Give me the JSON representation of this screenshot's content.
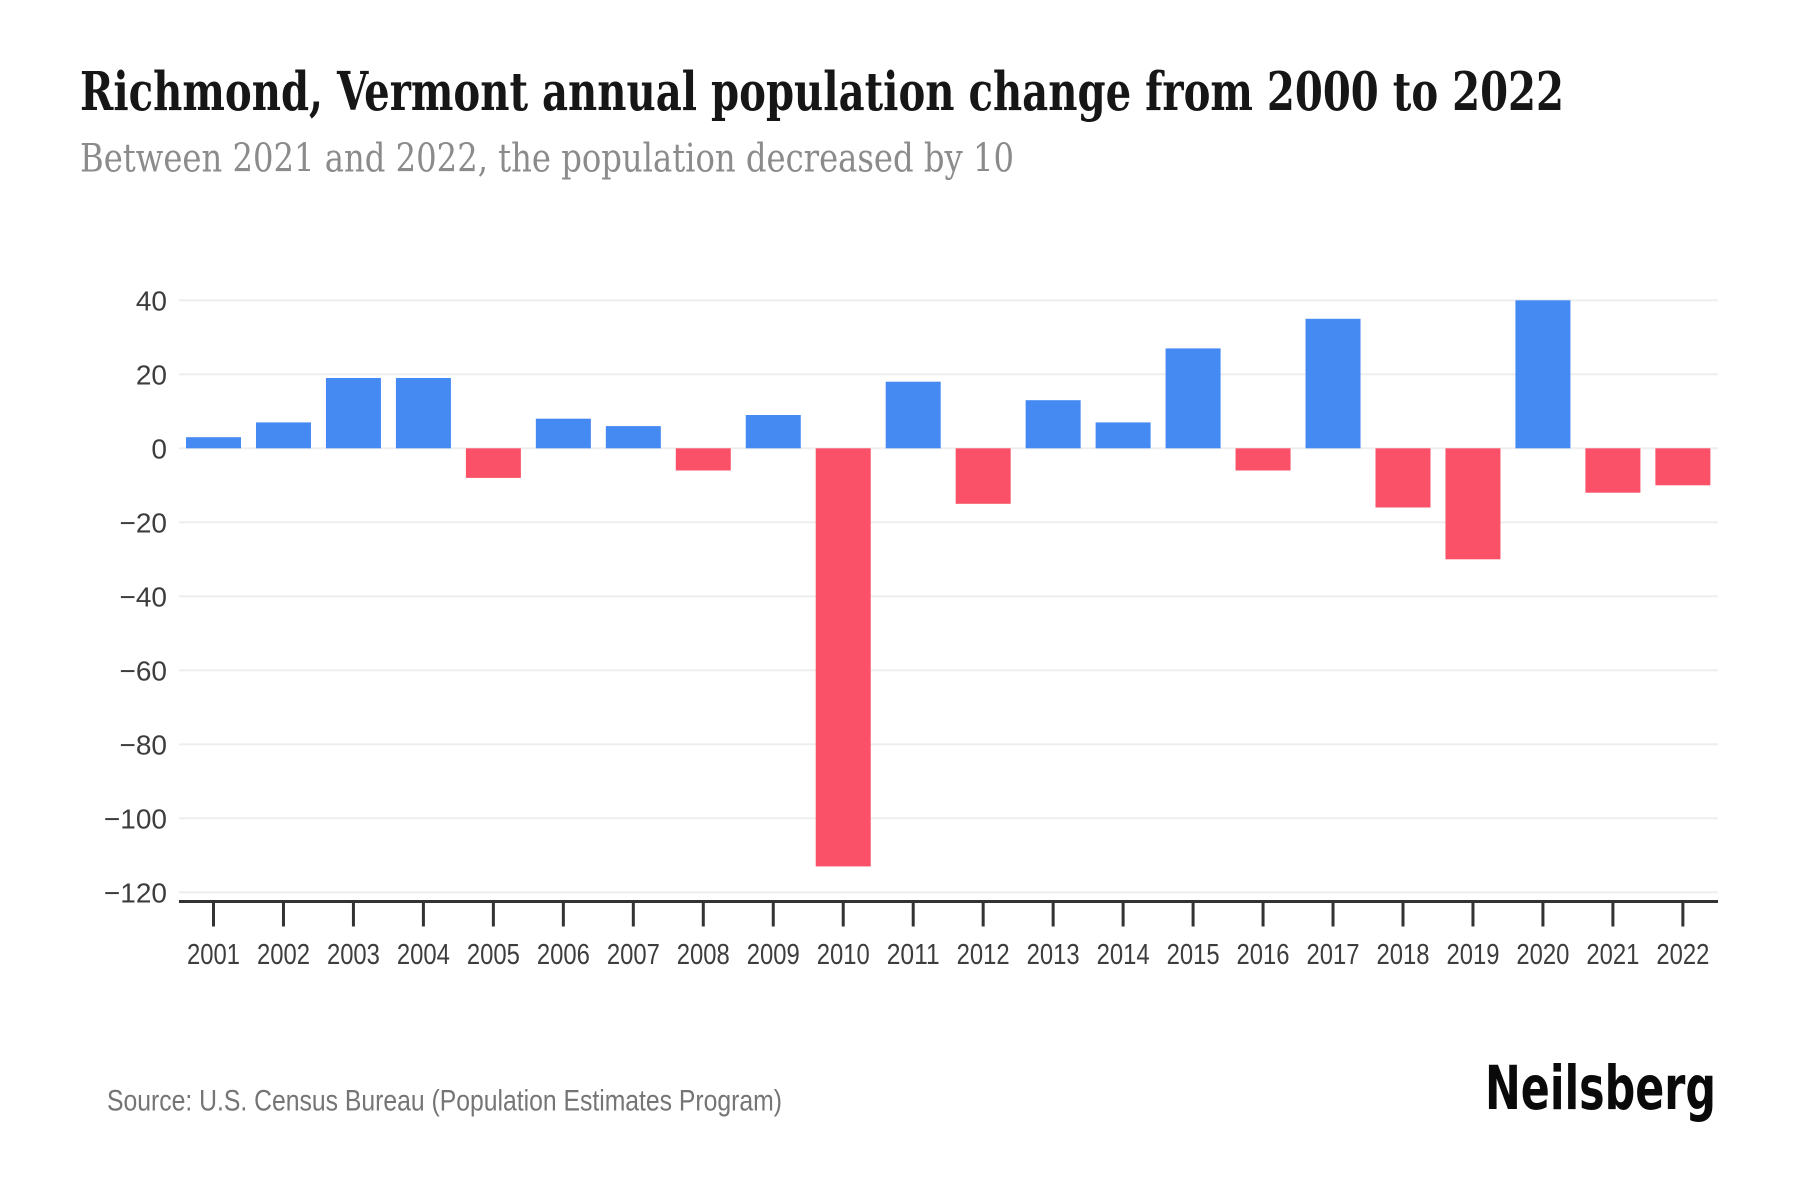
{
  "header": {
    "title": "Richmond, Vermont annual population change from 2000 to 2022",
    "subtitle": "Between 2021 and 2022, the population decreased by 10"
  },
  "footer": {
    "source": "Source: U.S. Census Bureau (Population Estimates Program)",
    "brand": "Neilsberg"
  },
  "chart_data": {
    "type": "bar",
    "title": "Richmond, Vermont annual population change from 2000 to 2022",
    "subtitle": "Between 2021 and 2022, the population decreased by 10",
    "categories": [
      2001,
      2002,
      2003,
      2004,
      2005,
      2006,
      2007,
      2008,
      2009,
      2010,
      2011,
      2012,
      2013,
      2014,
      2015,
      2016,
      2017,
      2018,
      2019,
      2020,
      2021,
      2022
    ],
    "values": [
      3,
      7,
      19,
      19,
      -8,
      8,
      6,
      -6,
      9,
      -113,
      18,
      -15,
      13,
      7,
      27,
      -6,
      35,
      -16,
      -30,
      40,
      -12,
      -10
    ],
    "xlabel": "",
    "ylabel": "",
    "ylim": [
      -120,
      40
    ],
    "yticks": [
      40,
      20,
      0,
      -20,
      -40,
      -60,
      -80,
      -100,
      -120
    ],
    "grid": true,
    "legend": false,
    "colors": {
      "positive": "#4589f2",
      "negative": "#fa5168",
      "gridline": "#eeeeee",
      "axis_line": "#333333",
      "tick_label": "#3d3d3d"
    }
  }
}
